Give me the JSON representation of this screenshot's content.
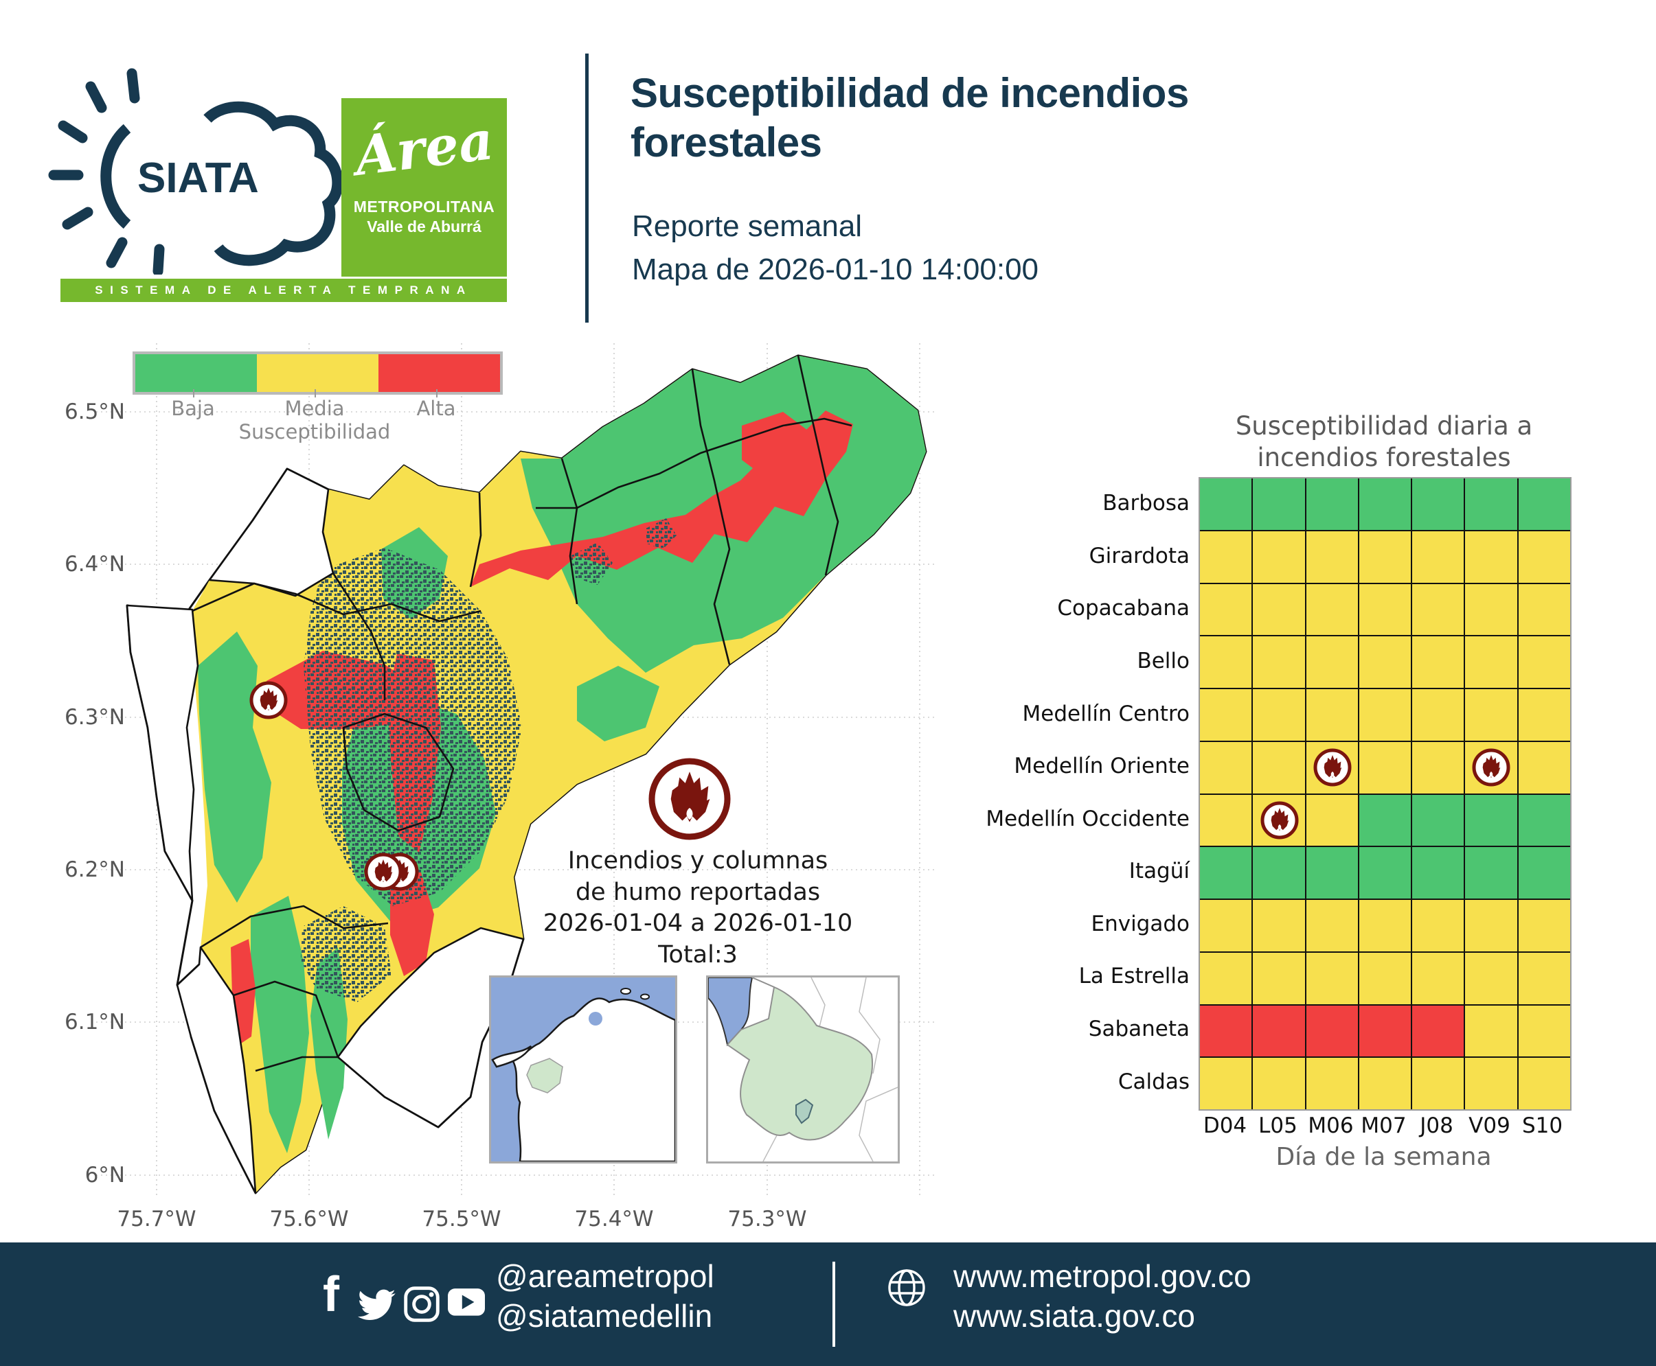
{
  "header": {
    "siata_label": "SIATA",
    "siata_banner": "SISTEMA DE ALERTA TEMPRANA",
    "amva": {
      "line1": "Área",
      "line2": "METROPOLITANA",
      "line3": "Valle de Aburrá"
    },
    "title_line1": "Susceptibilidad de incendios",
    "title_line2": "forestales",
    "subtitle": "Reporte semanal",
    "map_caption": "Mapa de 2026-01-10 14:00:00"
  },
  "map": {
    "legend": {
      "labels": [
        "Baja",
        "Media",
        "Alta"
      ],
      "title": "Susceptibilidad",
      "colors": {
        "baja": "#4dc571",
        "media": "#f7e04e",
        "alta": "#f14040"
      }
    },
    "y_ticks": [
      "6.5°N",
      "6.4°N",
      "6.3°N",
      "6.2°N",
      "6.1°N",
      "6°N"
    ],
    "x_ticks": [
      "75.7°W",
      "75.6°W",
      "75.5°W",
      "75.4°W",
      "75.3°W"
    ],
    "annotation": {
      "line1": "Incendios y columnas",
      "line2": "de humo reportadas",
      "line3": "2026-01-04 a 2026-01-10",
      "line4": "Total:3"
    },
    "fire_icon_color": "#7a150e"
  },
  "chart_data": {
    "type": "heatmap",
    "title_line1": "Susceptibilidad diaria a",
    "title_line2": "incendios forestales",
    "rows": [
      "Barbosa",
      "Girardota",
      "Copacabana",
      "Bello",
      "Medellín Centro",
      "Medellín Oriente",
      "Medellín Occidente",
      "Itagüí",
      "Envigado",
      "La Estrella",
      "Sabaneta",
      "Caldas"
    ],
    "columns": [
      "D04",
      "L05",
      "M06",
      "M07",
      "J08",
      "V09",
      "S10"
    ],
    "xlabel": "Día de la semana",
    "levels": {
      "Baja": "#4dc571",
      "Media": "#f7e04e",
      "Alta": "#f14040"
    },
    "values": [
      [
        "Baja",
        "Baja",
        "Baja",
        "Baja",
        "Baja",
        "Baja",
        "Baja"
      ],
      [
        "Media",
        "Media",
        "Media",
        "Media",
        "Media",
        "Media",
        "Media"
      ],
      [
        "Media",
        "Media",
        "Media",
        "Media",
        "Media",
        "Media",
        "Media"
      ],
      [
        "Media",
        "Media",
        "Media",
        "Media",
        "Media",
        "Media",
        "Media"
      ],
      [
        "Media",
        "Media",
        "Media",
        "Media",
        "Media",
        "Media",
        "Media"
      ],
      [
        "Media",
        "Media",
        "Media",
        "Media",
        "Media",
        "Media",
        "Media"
      ],
      [
        "Media",
        "Media",
        "Media",
        "Baja",
        "Baja",
        "Baja",
        "Baja"
      ],
      [
        "Baja",
        "Baja",
        "Baja",
        "Baja",
        "Baja",
        "Baja",
        "Baja"
      ],
      [
        "Media",
        "Media",
        "Media",
        "Media",
        "Media",
        "Media",
        "Media"
      ],
      [
        "Media",
        "Media",
        "Media",
        "Media",
        "Media",
        "Media",
        "Media"
      ],
      [
        "Alta",
        "Alta",
        "Alta",
        "Alta",
        "Alta",
        "Media",
        "Media"
      ],
      [
        "Media",
        "Media",
        "Media",
        "Media",
        "Media",
        "Media",
        "Media"
      ]
    ],
    "fire_markers": [
      {
        "row": "Medellín Oriente",
        "col": "M06"
      },
      {
        "row": "Medellín Oriente",
        "col": "V09"
      },
      {
        "row": "Medellín Occidente",
        "col": "L05"
      }
    ]
  },
  "footer": {
    "handle1": "@areametropol",
    "handle2": "@siatamedellin",
    "url1": "www.metropol.gov.co",
    "url2": "www.siata.gov.co"
  }
}
